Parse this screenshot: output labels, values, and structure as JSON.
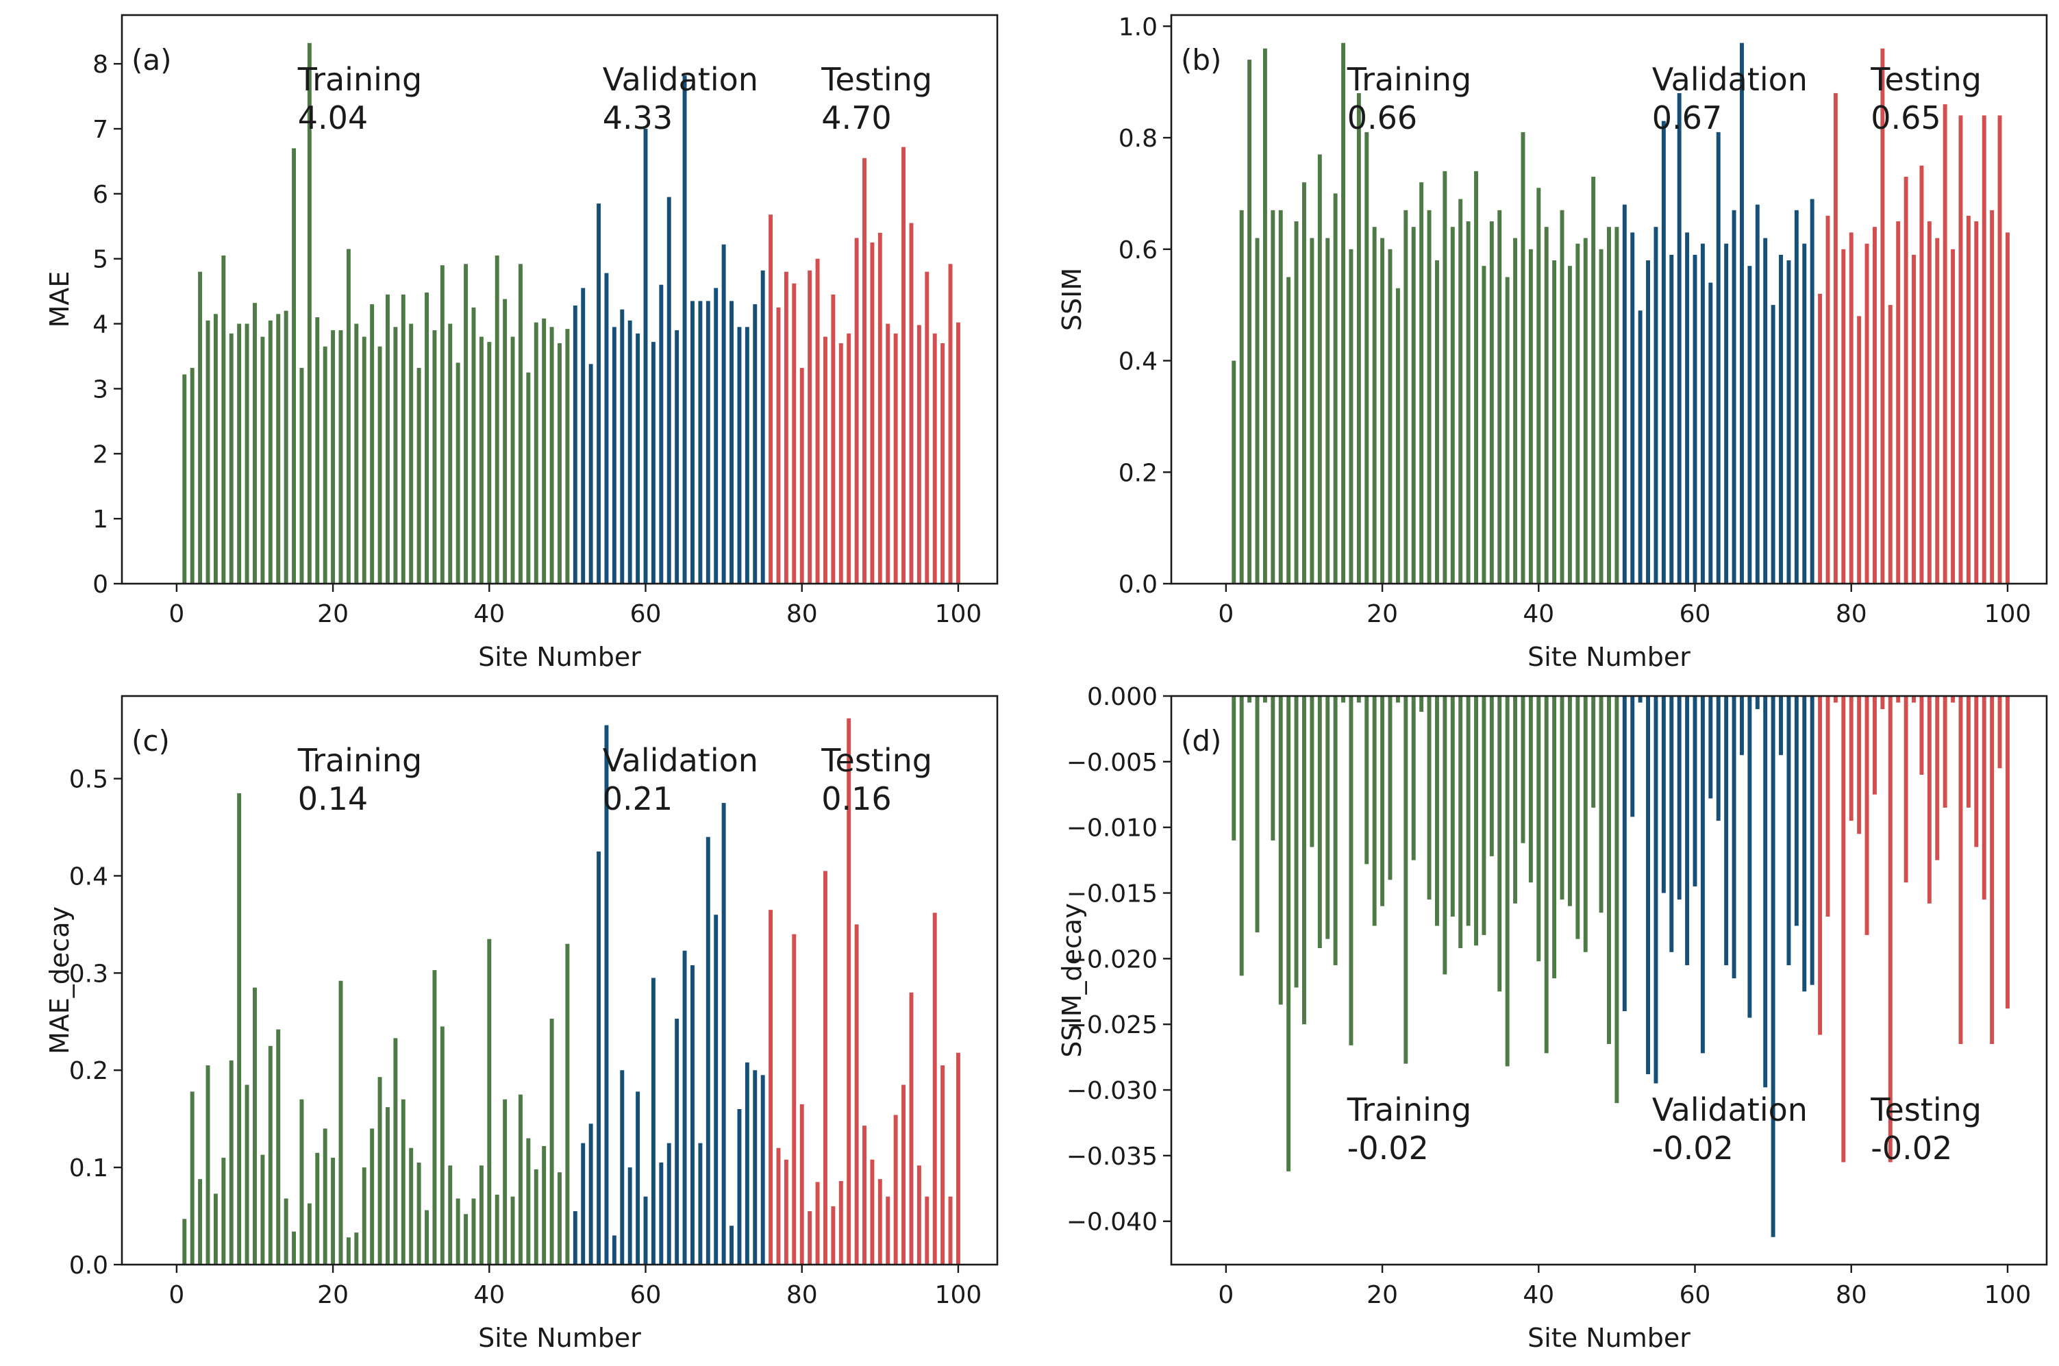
{
  "colors": {
    "training": "#4e7a46",
    "validation": "#165079",
    "testing": "#d34f4f",
    "axis": "#1a1a1a"
  },
  "chart_data": [
    {
      "panel_label": "(a)",
      "type": "bar",
      "ylabel": "MAE",
      "xlabel": "Site Number",
      "xlim": [
        -7,
        105
      ],
      "ylim": [
        0,
        8.75
      ],
      "x_ticks": [
        0,
        20,
        40,
        60,
        80,
        100
      ],
      "x_tick_labels": [
        "0",
        "20",
        "40",
        "60",
        "80",
        "100"
      ],
      "y_ticks": [
        0,
        1,
        2,
        3,
        4,
        5,
        6,
        7,
        8
      ],
      "y_tick_labels": [
        "0",
        "1",
        "2",
        "3",
        "4",
        "5",
        "6",
        "7",
        "8"
      ],
      "annotations_position": "top",
      "annotations": [
        {
          "group": "training",
          "name": "Training",
          "value": "4.04",
          "x": 15.5
        },
        {
          "group": "validation",
          "name": "Validation",
          "value": "4.33",
          "x": 54.5
        },
        {
          "group": "testing",
          "name": "Testing",
          "value": "4.70",
          "x": 82.5
        }
      ],
      "series": [
        {
          "name": "Training",
          "group": "training",
          "x_start": 1,
          "values": [
            3.22,
            3.32,
            4.8,
            4.05,
            4.15,
            5.05,
            3.85,
            4.0,
            4.0,
            4.32,
            3.8,
            4.05,
            4.15,
            4.2,
            6.7,
            3.32,
            8.32,
            4.1,
            3.65,
            3.9,
            3.9,
            5.15,
            4.0,
            3.8,
            4.3,
            3.65,
            4.45,
            3.95,
            4.45,
            4.0,
            3.32,
            4.48,
            3.9,
            4.9,
            4.0,
            3.4,
            4.92,
            4.25,
            3.8,
            3.72,
            5.05,
            4.38,
            3.8,
            4.92,
            3.25,
            4.02,
            4.08,
            3.95,
            3.7,
            3.92
          ]
        },
        {
          "name": "Validation",
          "group": "validation",
          "x_start": 51,
          "values": [
            4.28,
            4.55,
            3.38,
            5.85,
            4.78,
            3.95,
            4.22,
            4.05,
            3.85,
            7.0,
            3.72,
            4.6,
            5.95,
            3.9,
            7.82,
            4.35,
            4.35,
            4.35,
            4.55,
            5.22,
            4.35,
            3.95,
            3.95,
            4.3,
            4.82
          ]
        },
        {
          "name": "Testing",
          "group": "testing",
          "x_start": 76,
          "values": [
            5.68,
            4.25,
            4.8,
            4.62,
            3.32,
            4.82,
            5.0,
            3.8,
            4.45,
            3.7,
            3.85,
            5.32,
            6.55,
            5.25,
            5.4,
            4.0,
            3.85,
            6.72,
            5.55,
            3.98,
            4.8,
            3.85,
            3.7,
            4.92,
            4.02
          ]
        }
      ]
    },
    {
      "panel_label": "(b)",
      "type": "bar",
      "ylabel": "SSIM",
      "xlabel": "Site Number",
      "xlim": [
        -7,
        105
      ],
      "ylim": [
        0,
        1.02
      ],
      "x_ticks": [
        0,
        20,
        40,
        60,
        80,
        100
      ],
      "x_tick_labels": [
        "0",
        "20",
        "40",
        "60",
        "80",
        "100"
      ],
      "y_ticks": [
        0,
        0.2,
        0.4,
        0.6,
        0.8,
        1.0
      ],
      "y_tick_labels": [
        "0.0",
        "0.2",
        "0.4",
        "0.6",
        "0.8",
        "1.0"
      ],
      "annotations_position": "top",
      "annotations": [
        {
          "group": "training",
          "name": "Training",
          "value": "0.66",
          "x": 15.5
        },
        {
          "group": "validation",
          "name": "Validation",
          "value": "0.67",
          "x": 54.5
        },
        {
          "group": "testing",
          "name": "Testing",
          "value": "0.65",
          "x": 82.5
        }
      ],
      "series": [
        {
          "name": "Training",
          "group": "training",
          "x_start": 1,
          "values": [
            0.4,
            0.67,
            0.94,
            0.62,
            0.96,
            0.67,
            0.67,
            0.55,
            0.65,
            0.72,
            0.62,
            0.77,
            0.62,
            0.7,
            0.97,
            0.6,
            0.88,
            0.81,
            0.64,
            0.62,
            0.6,
            0.53,
            0.67,
            0.64,
            0.72,
            0.67,
            0.58,
            0.74,
            0.64,
            0.69,
            0.65,
            0.74,
            0.57,
            0.65,
            0.67,
            0.55,
            0.62,
            0.81,
            0.6,
            0.71,
            0.64,
            0.58,
            0.67,
            0.57,
            0.61,
            0.62,
            0.73,
            0.6,
            0.64,
            0.64
          ]
        },
        {
          "name": "Validation",
          "group": "validation",
          "x_start": 51,
          "values": [
            0.68,
            0.63,
            0.49,
            0.58,
            0.64,
            0.83,
            0.59,
            0.88,
            0.63,
            0.59,
            0.61,
            0.54,
            0.81,
            0.61,
            0.67,
            0.97,
            0.57,
            0.68,
            0.62,
            0.5,
            0.59,
            0.58,
            0.67,
            0.61,
            0.69
          ]
        },
        {
          "name": "Testing",
          "group": "testing",
          "x_start": 76,
          "values": [
            0.52,
            0.66,
            0.88,
            0.6,
            0.63,
            0.48,
            0.61,
            0.64,
            0.96,
            0.5,
            0.65,
            0.73,
            0.59,
            0.75,
            0.65,
            0.62,
            0.86,
            0.6,
            0.84,
            0.66,
            0.65,
            0.84,
            0.67,
            0.84,
            0.63
          ]
        }
      ]
    },
    {
      "panel_label": "(c)",
      "type": "bar",
      "ylabel": "MAE_decay",
      "xlabel": "Site Number",
      "xlim": [
        -7,
        105
      ],
      "ylim": [
        0,
        0.585
      ],
      "x_ticks": [
        0,
        20,
        40,
        60,
        80,
        100
      ],
      "x_tick_labels": [
        "0",
        "20",
        "40",
        "60",
        "80",
        "100"
      ],
      "y_ticks": [
        0,
        0.1,
        0.2,
        0.3,
        0.4,
        0.5
      ],
      "y_tick_labels": [
        "0.0",
        "0.1",
        "0.2",
        "0.3",
        "0.4",
        "0.5"
      ],
      "annotations_position": "top",
      "annotations": [
        {
          "group": "training",
          "name": "Training",
          "value": "0.14",
          "x": 15.5
        },
        {
          "group": "validation",
          "name": "Validation",
          "value": "0.21",
          "x": 54.5
        },
        {
          "group": "testing",
          "name": "Testing",
          "value": "0.16",
          "x": 82.5
        }
      ],
      "series": [
        {
          "name": "Training",
          "group": "training",
          "x_start": 1,
          "values": [
            0.047,
            0.178,
            0.088,
            0.205,
            0.073,
            0.11,
            0.21,
            0.485,
            0.185,
            0.285,
            0.113,
            0.225,
            0.242,
            0.068,
            0.034,
            0.17,
            0.063,
            0.115,
            0.14,
            0.11,
            0.292,
            0.028,
            0.033,
            0.1,
            0.14,
            0.193,
            0.162,
            0.233,
            0.17,
            0.12,
            0.105,
            0.056,
            0.303,
            0.245,
            0.102,
            0.068,
            0.052,
            0.068,
            0.102,
            0.335,
            0.072,
            0.17,
            0.07,
            0.175,
            0.13,
            0.098,
            0.122,
            0.253,
            0.095,
            0.33
          ]
        },
        {
          "name": "Validation",
          "group": "validation",
          "x_start": 51,
          "values": [
            0.055,
            0.125,
            0.145,
            0.425,
            0.555,
            0.03,
            0.2,
            0.1,
            0.178,
            0.07,
            0.295,
            0.105,
            0.125,
            0.253,
            0.323,
            0.308,
            0.125,
            0.44,
            0.36,
            0.475,
            0.04,
            0.16,
            0.208,
            0.2,
            0.195
          ]
        },
        {
          "name": "Testing",
          "group": "testing",
          "x_start": 76,
          "values": [
            0.365,
            0.12,
            0.108,
            0.34,
            0.165,
            0.055,
            0.085,
            0.405,
            0.06,
            0.086,
            0.562,
            0.35,
            0.143,
            0.108,
            0.088,
            0.07,
            0.154,
            0.185,
            0.28,
            0.102,
            0.07,
            0.362,
            0.205,
            0.07,
            0.218
          ]
        }
      ]
    },
    {
      "panel_label": "(d)",
      "type": "bar",
      "ylabel": "SSIM_decay",
      "xlabel": "Site Number",
      "xlim": [
        -7,
        105
      ],
      "ylim": [
        -0.0433,
        0
      ],
      "x_ticks": [
        0,
        20,
        40,
        60,
        80,
        100
      ],
      "x_tick_labels": [
        "0",
        "20",
        "40",
        "60",
        "80",
        "100"
      ],
      "y_ticks": [
        0,
        -0.005,
        -0.01,
        -0.015,
        -0.02,
        -0.025,
        -0.03,
        -0.035,
        -0.04
      ],
      "y_tick_labels": [
        "0.000",
        "−0.005",
        "−0.010",
        "−0.015",
        "−0.020",
        "−0.025",
        "−0.030",
        "−0.035",
        "−0.040"
      ],
      "annotations_position": "bottom",
      "annotations": [
        {
          "group": "training",
          "name": "Training",
          "value": "-0.02",
          "x": 15.5
        },
        {
          "group": "validation",
          "name": "Validation",
          "value": "-0.02",
          "x": 54.5
        },
        {
          "group": "testing",
          "name": "Testing",
          "value": "-0.02",
          "x": 82.5
        }
      ],
      "series": [
        {
          "name": "Training",
          "group": "training",
          "x_start": 1,
          "values": [
            -0.011,
            -0.0213,
            -0.0005,
            -0.018,
            -0.0005,
            -0.011,
            -0.0235,
            -0.0362,
            -0.0222,
            -0.025,
            -0.0115,
            -0.0192,
            -0.0185,
            -0.0205,
            -0.0005,
            -0.0266,
            -0.0005,
            -0.0128,
            -0.0175,
            -0.016,
            -0.014,
            -0.0005,
            -0.028,
            -0.0125,
            -0.0012,
            -0.0155,
            -0.0175,
            -0.0212,
            -0.0168,
            -0.0192,
            -0.0175,
            -0.019,
            -0.0182,
            -0.0122,
            -0.0225,
            -0.0282,
            -0.0158,
            -0.0112,
            -0.0142,
            -0.0202,
            -0.0272,
            -0.0215,
            -0.0155,
            -0.016,
            -0.0185,
            -0.0195,
            -0.0085,
            -0.0165,
            -0.0265,
            -0.031
          ]
        },
        {
          "name": "Validation",
          "group": "validation",
          "x_start": 51,
          "values": [
            -0.024,
            -0.0092,
            -0.0005,
            -0.0288,
            -0.0295,
            -0.015,
            -0.0195,
            -0.0155,
            -0.0205,
            -0.0145,
            -0.0272,
            -0.0078,
            -0.0095,
            -0.0205,
            -0.0215,
            -0.0045,
            -0.0245,
            -0.001,
            -0.0298,
            -0.0412,
            -0.0045,
            -0.0205,
            -0.0175,
            -0.0225,
            -0.022
          ]
        },
        {
          "name": "Testing",
          "group": "testing",
          "x_start": 76,
          "values": [
            -0.0258,
            -0.0168,
            -0.0005,
            -0.0355,
            -0.0095,
            -0.0105,
            -0.0182,
            -0.0075,
            -0.001,
            -0.0355,
            -0.0005,
            -0.0142,
            -0.0005,
            -0.006,
            -0.0158,
            -0.0125,
            -0.0085,
            -0.0005,
            -0.0265,
            -0.0085,
            -0.0115,
            -0.0155,
            -0.0265,
            -0.0055,
            -0.0238
          ]
        }
      ]
    }
  ]
}
